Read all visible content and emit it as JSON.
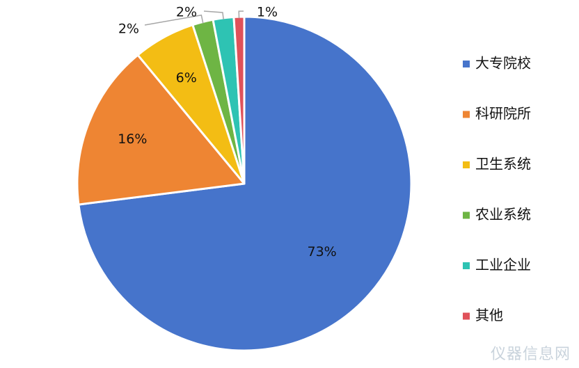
{
  "chart_data": {
    "type": "pie",
    "categories": [
      "大专院校",
      "科研院所",
      "卫生系统",
      "农业系统",
      "工业企业",
      "其他"
    ],
    "values": [
      73,
      16,
      6,
      2,
      2,
      1
    ],
    "labels": [
      "73%",
      "16%",
      "6%",
      "2%",
      "2%",
      "1%"
    ],
    "legend_position": "right",
    "start_angle_deg": 0,
    "direction": "clockwise"
  },
  "colors": [
    "#4674CB",
    "#EE8533",
    "#F3BD14",
    "#6EB544",
    "#2EC3B3",
    "#E0525A"
  ],
  "watermark": "仪器信息网"
}
